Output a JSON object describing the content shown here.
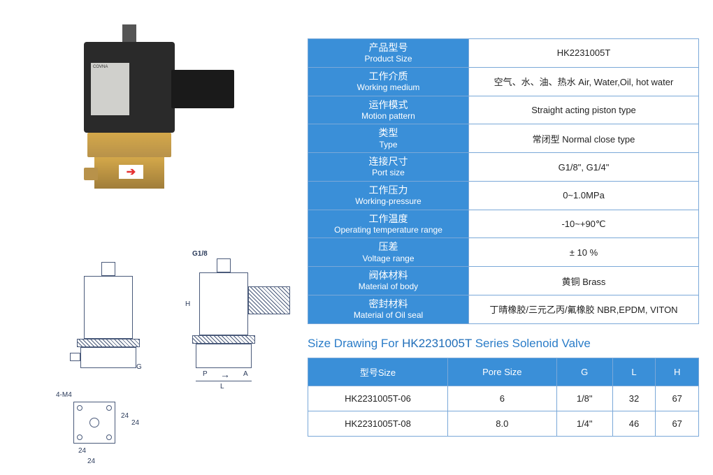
{
  "product_photo": {
    "brand_label": "COVNA",
    "arrow_glyph": "➔"
  },
  "spec_table": {
    "rows": [
      {
        "label_cn": "产品型号",
        "label_en": "Product Size",
        "value": "HK2231005T"
      },
      {
        "label_cn": "工作介质",
        "label_en": "Working medium",
        "value": "空气、水、油、热水 Air, Water,Oil, hot water"
      },
      {
        "label_cn": "运作模式",
        "label_en": "Motion pattern",
        "value": "Straight acting piston type"
      },
      {
        "label_cn": "类型",
        "label_en": "Type",
        "value": "常闭型 Normal close type"
      },
      {
        "label_cn": "连接尺寸",
        "label_en": "Port size",
        "value": "G1/8\", G1/4\""
      },
      {
        "label_cn": "工作压力",
        "label_en": "Working-pressure",
        "value": "0~1.0MPa"
      },
      {
        "label_cn": "工作温度",
        "label_en": "Operating temperature range",
        "value": "-10~+90℃"
      },
      {
        "label_cn": "压差",
        "label_en": "Voltage range",
        "value": "± 10 %"
      },
      {
        "label_cn": "阀体材料",
        "label_en": "Material of body",
        "value": "黄铜 Brass"
      },
      {
        "label_cn": "密封材料",
        "label_en": "Material of Oil seal",
        "value": "丁晴橡胶/三元乙丙/氟橡胶 NBR,EPDM, VITON"
      }
    ]
  },
  "size_heading": {
    "prefix": "Size Drawing For ",
    "model": "HK2231005T",
    "suffix": " Series Solenoid Valve"
  },
  "size_table": {
    "columns": [
      "型号Size",
      "Pore Size",
      "G",
      "L",
      "H"
    ],
    "rows": [
      {
        "model": "HK2231005T-06",
        "pore": "6",
        "g": "1/8\"",
        "l": "32",
        "h": "67"
      },
      {
        "model": "HK2231005T-08",
        "pore": "8.0",
        "g": "1/4\"",
        "l": "46",
        "h": "67"
      }
    ]
  },
  "drawing_labels": {
    "port_marker": "G1/8",
    "p": "P",
    "a": "A",
    "l": "L",
    "h": "H",
    "g": "G",
    "holes": "4-M4",
    "d24a": "24",
    "d24b": "24",
    "d24c": "24",
    "d24d": "24"
  },
  "colors": {
    "header_bg": "#3a8fd8",
    "header_text": "#ffffff",
    "border": "#7aa8d8",
    "title": "#2a7cc8",
    "body_text": "#222222",
    "brass": "#d4a84a",
    "black_body": "#2a2a2a",
    "arrow": "#e63131"
  }
}
